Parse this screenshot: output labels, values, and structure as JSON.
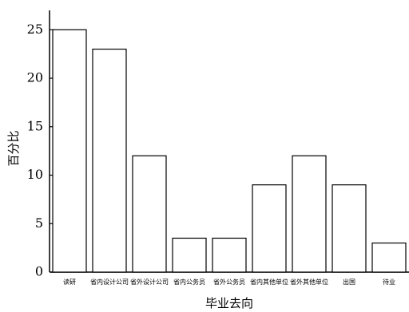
{
  "chart_data": {
    "type": "bar",
    "x_label": "毕业去向",
    "y_label": "百分比",
    "categories": [
      "读研",
      "省内设计公司",
      "省外设计公司",
      "省内公务员",
      "省外公务员",
      "省内其他单位",
      "省外其他单位",
      "出国",
      "待业"
    ],
    "values": [
      25,
      23,
      12,
      3.5,
      3.5,
      9,
      12,
      9,
      3
    ],
    "color": "#ffffff",
    "ylim": [
      0,
      27
    ],
    "yticks": [
      0,
      5,
      10,
      15,
      20,
      25
    ],
    "grid": false
  }
}
